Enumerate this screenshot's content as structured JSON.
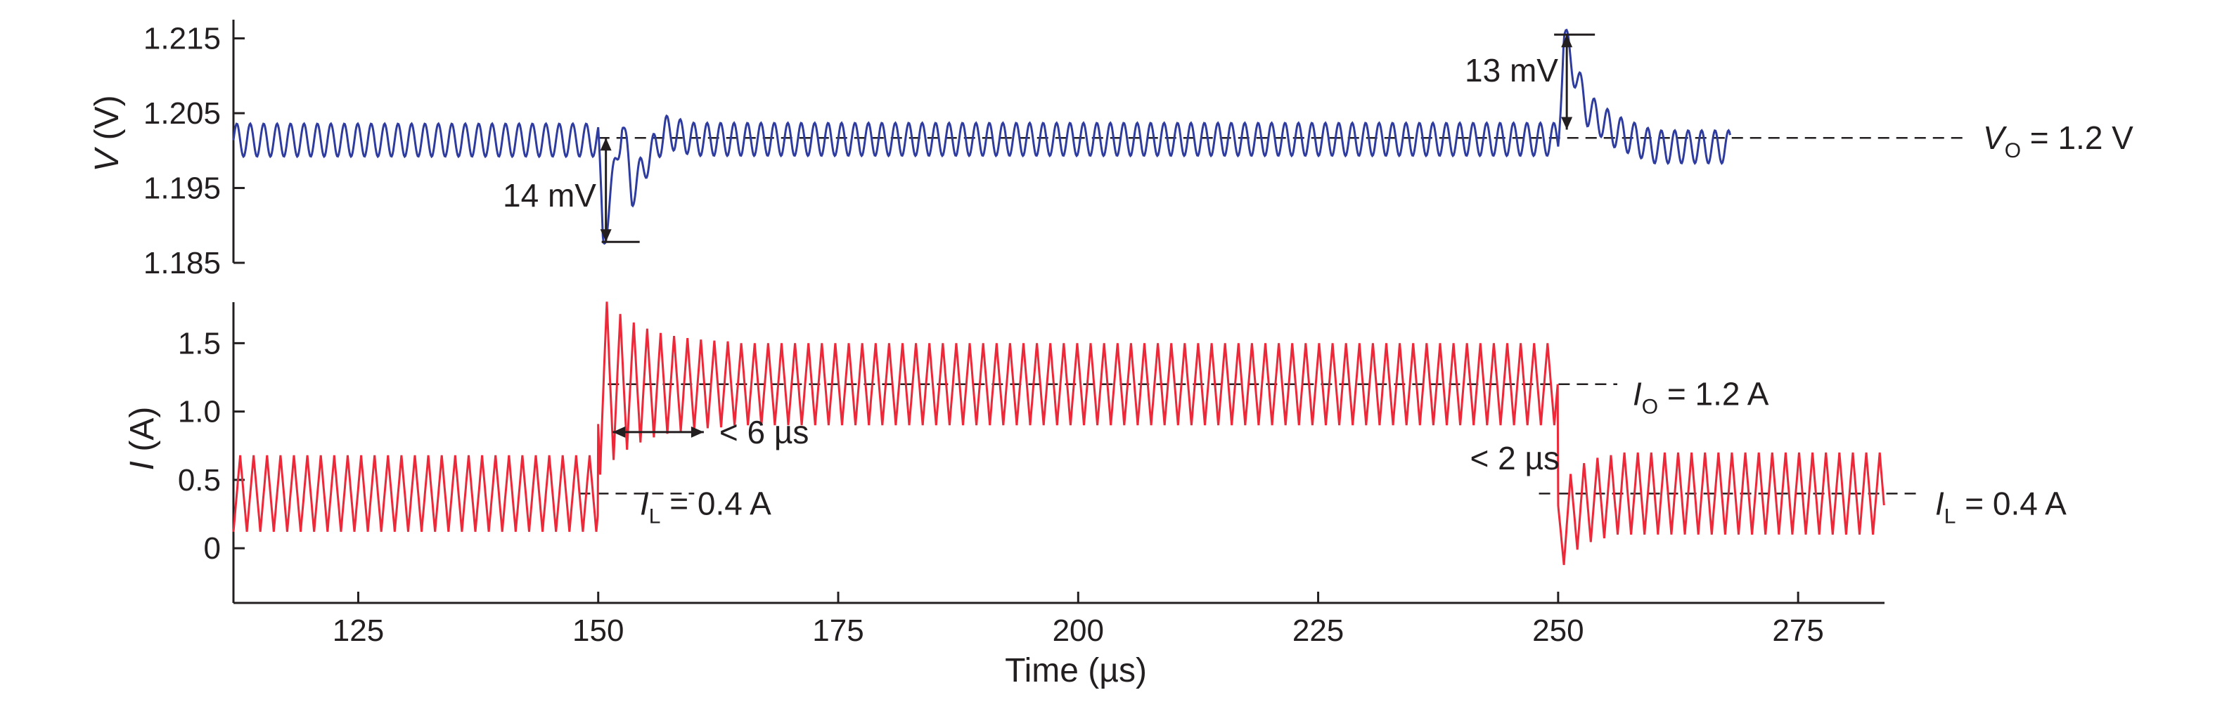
{
  "chart_data": [
    {
      "type": "line",
      "panel": "voltage",
      "ylabel_italic": "V",
      "ylabel_unit": "(V)",
      "xlim": [
        112,
        284
      ],
      "ylim": [
        1.185,
        1.2175
      ],
      "yticks": [
        1.185,
        1.195,
        1.205,
        1.215
      ],
      "ytick_labels": [
        "1.185",
        "1.195",
        "1.205",
        "1.215"
      ],
      "series": [
        {
          "color": "#2e3b9f",
          "ripple_period_us": 1.4,
          "points": [
            {
              "t": 112,
              "v": 1.2014
            },
            {
              "t": 150,
              "v": 1.2014
            },
            {
              "t": 150.5,
              "v": 1.1878
            },
            {
              "t": 151.5,
              "v": 1.1955
            },
            {
              "t": 152.5,
              "v": 1.204
            },
            {
              "t": 153.5,
              "v": 1.1945
            },
            {
              "t": 155,
              "v": 1.1985
            },
            {
              "t": 157,
              "v": 1.2025
            },
            {
              "t": 160,
              "v": 1.2015
            },
            {
              "t": 250,
              "v": 1.2015
            },
            {
              "t": 250.6,
              "v": 1.2152
            },
            {
              "t": 251.6,
              "v": 1.211
            },
            {
              "t": 253,
              "v": 1.2055
            },
            {
              "t": 256,
              "v": 1.2025
            },
            {
              "t": 260,
              "v": 1.2005
            },
            {
              "t": 284,
              "v": 1.2005
            }
          ]
        }
      ],
      "reference_line": {
        "value": 1.2017,
        "label_var": "V",
        "label_sub": "O",
        "label_rest": " = 1.2 V"
      },
      "annotations": [
        {
          "text": "14 mV",
          "t": 150.8,
          "from": 1.2017,
          "to": 1.1878
        },
        {
          "text": "13 mV",
          "t": 250.9,
          "from": 1.2028,
          "to": 1.2155
        }
      ]
    },
    {
      "type": "line",
      "panel": "current",
      "ylabel_italic": "I",
      "ylabel_unit": "(A)",
      "xlabel": "Time (µs)",
      "xlim": [
        112,
        284
      ],
      "ylim": [
        -0.4,
        1.8
      ],
      "xticks": [
        125,
        150,
        175,
        200,
        225,
        250,
        275
      ],
      "xtick_labels": [
        "125",
        "150",
        "175",
        "200",
        "225",
        "250",
        "275"
      ],
      "yticks": [
        0,
        0.5,
        1.0,
        1.5
      ],
      "ytick_labels": [
        "0",
        "0.5",
        "1.0",
        "1.5"
      ],
      "series": [
        {
          "color": "#ed2939",
          "ripple_period_us": 1.4,
          "ripple_amplitude_A": 0.3,
          "segments": [
            {
              "from": 112,
              "to": 150,
              "level": 0.4
            },
            {
              "from": 150,
              "to": 250,
              "level": 1.2
            },
            {
              "from": 250,
              "to": 284,
              "level": 0.4
            }
          ],
          "step_overshoot": [
            {
              "t": 151,
              "peak": 1.78
            },
            {
              "t": 252.5,
              "trough": -0.02
            }
          ]
        }
      ],
      "reference_lines": [
        {
          "value": 0.4,
          "from": 150,
          "label_var": "I",
          "label_sub": "L",
          "label_rest": " = 0.4 A"
        },
        {
          "value": 1.2,
          "from": 250,
          "label_var": "I",
          "label_sub": "O",
          "label_rest": " = 1.2 A"
        },
        {
          "value": 0.4,
          "from": 250,
          "label_var": "I",
          "label_sub": "L",
          "label_rest": " = 0.4 A"
        }
      ],
      "annotations": [
        {
          "text": "< 6 µs",
          "from_t": 151.5,
          "to_t": 161
        },
        {
          "text": "< 2 µs"
        }
      ]
    }
  ]
}
